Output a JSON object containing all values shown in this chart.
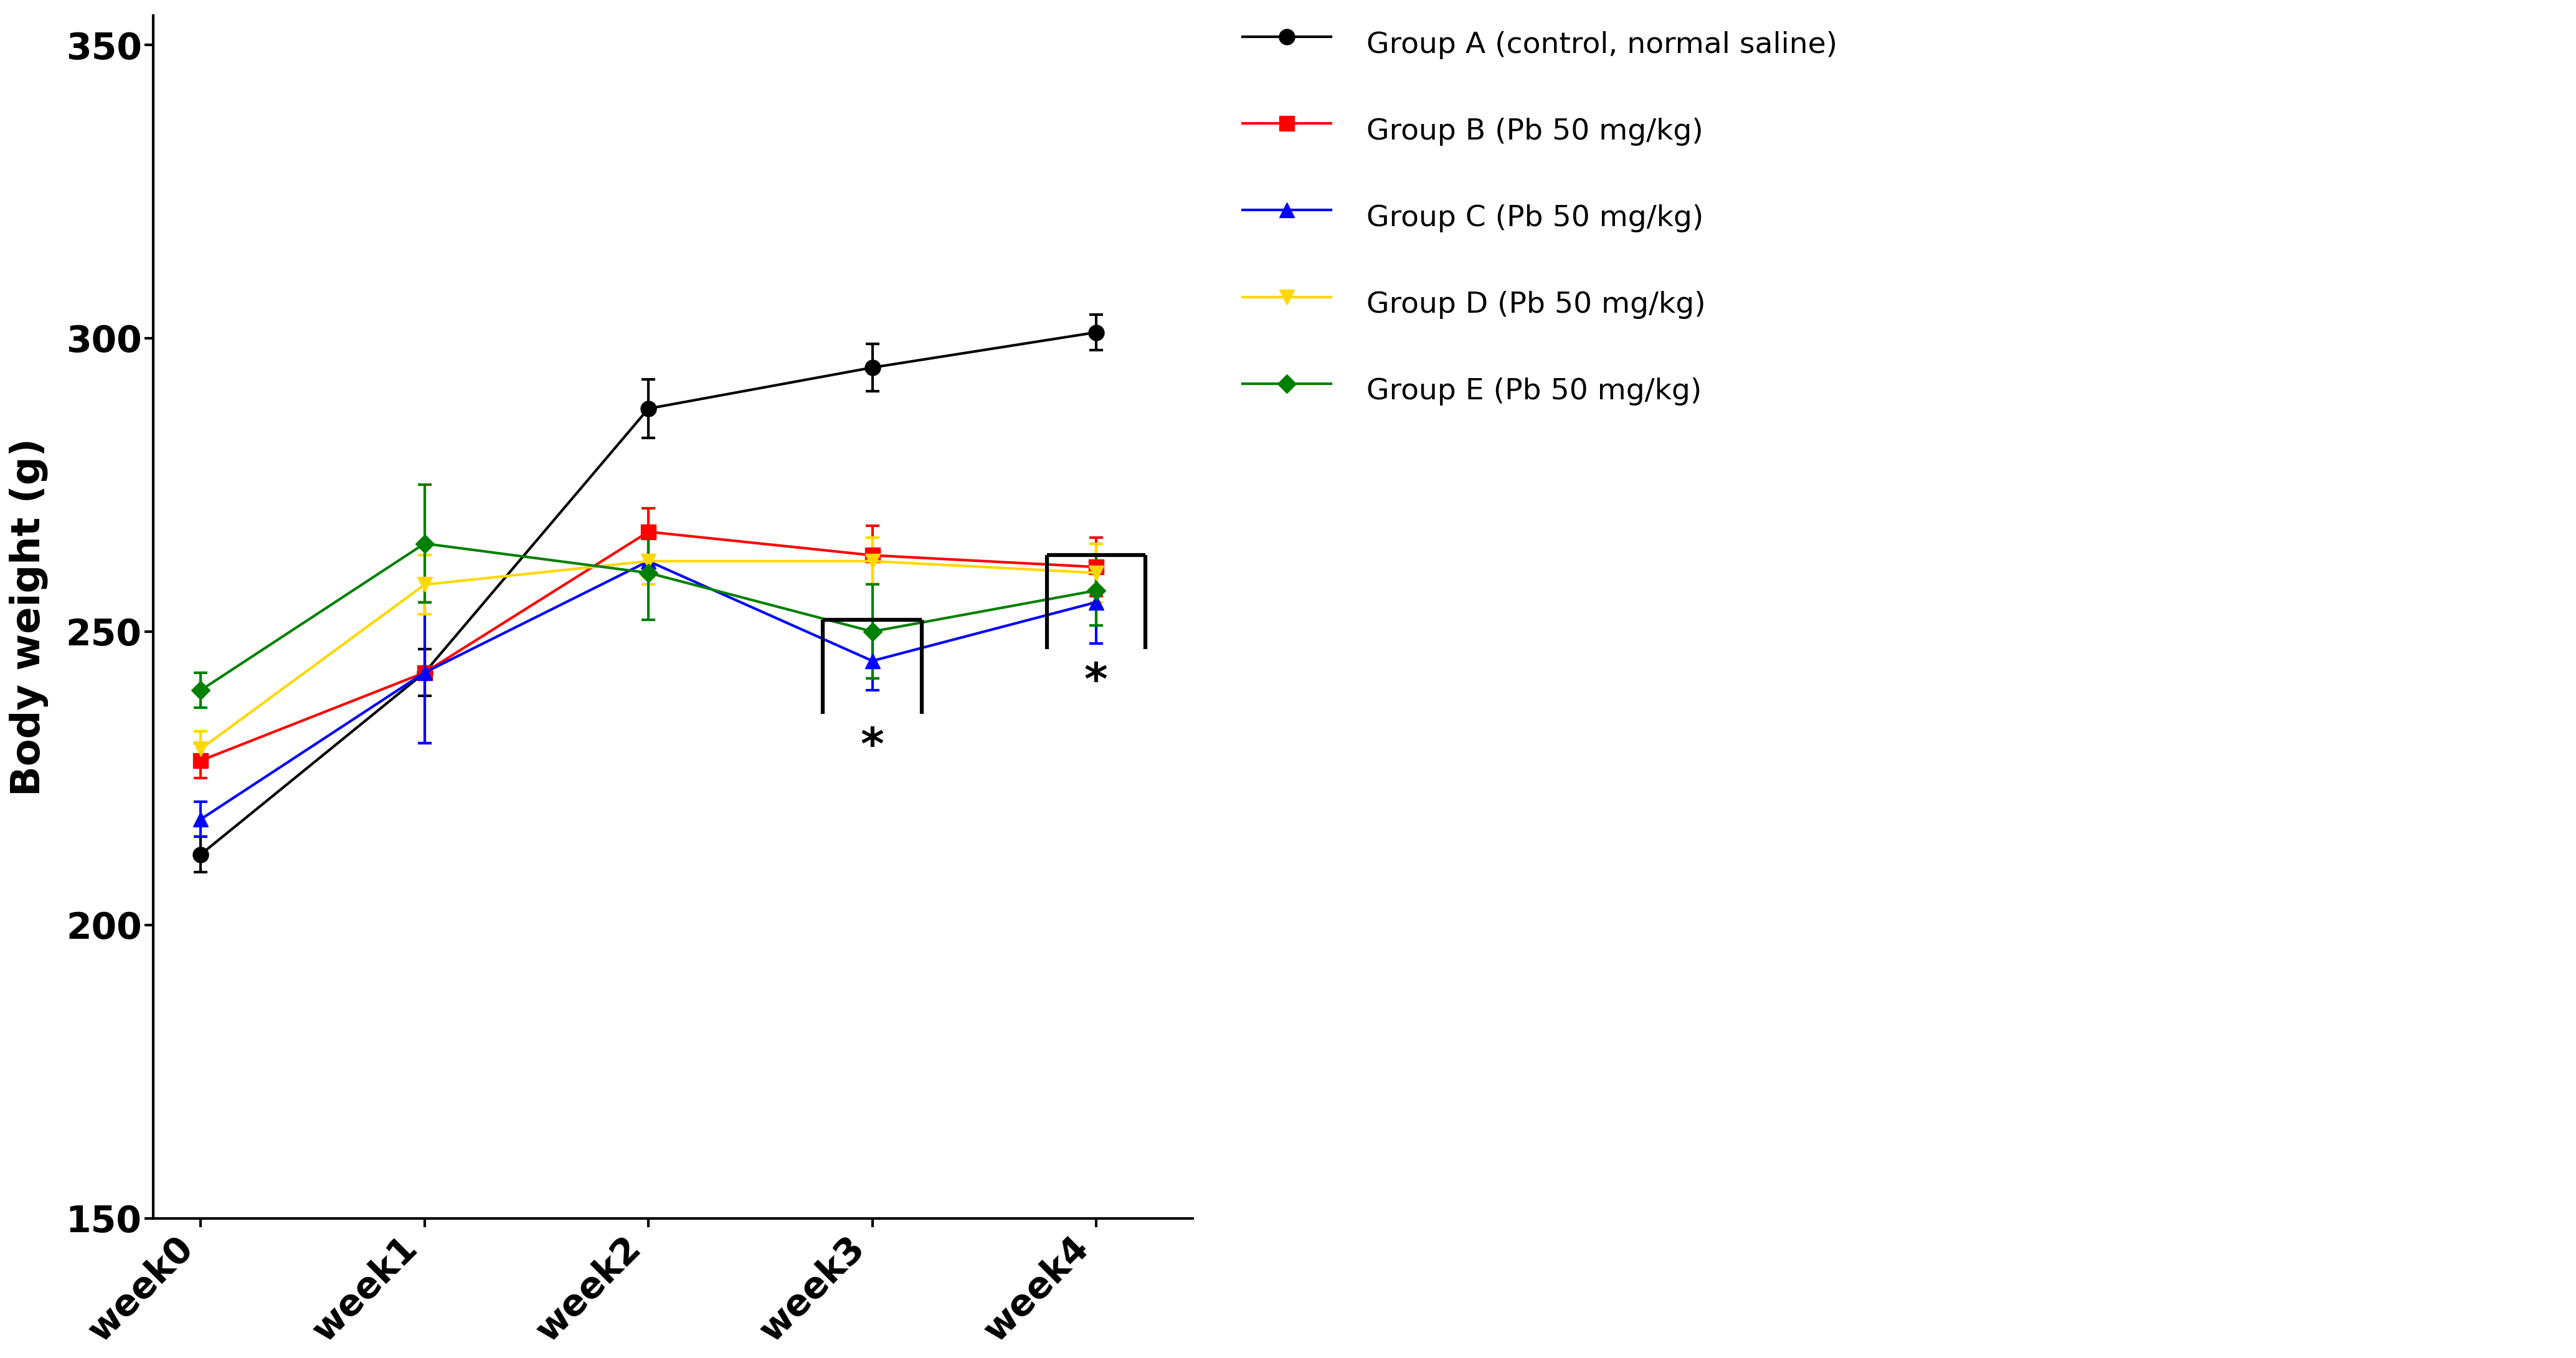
{
  "weeks": [
    0,
    1,
    2,
    3,
    4
  ],
  "xlabels": [
    "week0",
    "week1",
    "week2",
    "week3",
    "week4"
  ],
  "groups": {
    "A": {
      "label": "Group A (control, normal saline)",
      "color": "#000000",
      "marker": "o",
      "markersize": 18,
      "linewidth": 3.0,
      "values": [
        212,
        243,
        288,
        295,
        301
      ],
      "errors": [
        3,
        4,
        5,
        4,
        3
      ]
    },
    "B": {
      "label": "Group B (Pb 50 mg/kg)",
      "color": "#FF0000",
      "marker": "s",
      "markersize": 17,
      "linewidth": 3.0,
      "values": [
        228,
        243,
        267,
        263,
        261
      ],
      "errors": [
        3,
        12,
        4,
        5,
        5
      ]
    },
    "C": {
      "label": "Group C (Pb 50 mg/kg)",
      "color": "#0000FF",
      "marker": "^",
      "markersize": 17,
      "linewidth": 3.0,
      "values": [
        218,
        243,
        262,
        245,
        255
      ],
      "errors": [
        3,
        12,
        4,
        5,
        7
      ]
    },
    "D": {
      "label": "Group D (Pb 50 mg/kg)",
      "color": "#FFD700",
      "marker": "v",
      "markersize": 17,
      "linewidth": 3.0,
      "values": [
        230,
        258,
        262,
        262,
        260
      ],
      "errors": [
        3,
        5,
        4,
        4,
        5
      ]
    },
    "E": {
      "label": "Group E (Pb 50 mg/kg)",
      "color": "#008000",
      "marker": "D",
      "markersize": 15,
      "linewidth": 3.0,
      "values": [
        240,
        265,
        260,
        250,
        257
      ],
      "errors": [
        3,
        10,
        8,
        8,
        6
      ]
    }
  },
  "ylabel": "Body weight (g)",
  "ylim": [
    150,
    355
  ],
  "yticks": [
    150,
    200,
    250,
    300,
    350
  ],
  "background_color": "#FFFFFF"
}
